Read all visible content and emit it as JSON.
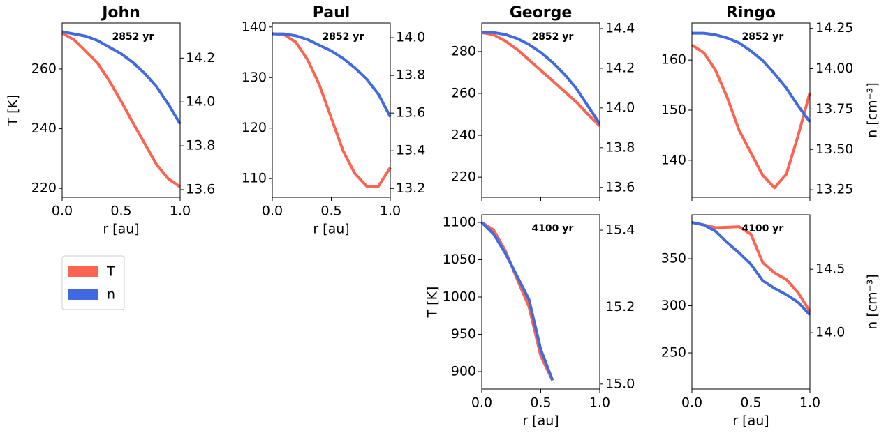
{
  "chart_data": [
    {
      "type": "line",
      "title": "John",
      "annotation": "2852 yr",
      "xlabel": "r [au]",
      "ylabel": "T [K]",
      "x": [
        0,
        0.1,
        0.2,
        0.3,
        0.4,
        0.5,
        0.6,
        0.7,
        0.8,
        0.9,
        1.0
      ],
      "xlim": [
        0,
        1
      ],
      "xticks": [
        {
          "value": 0,
          "label": "0.0"
        },
        0.5,
        {
          "value": 1,
          "label": "1.0"
        }
      ],
      "ylim": [
        217,
        275.4
      ],
      "yticks": [
        220,
        240,
        260
      ],
      "y2lim": [
        13.565,
        14.36
      ],
      "y2ticks": [
        13.6,
        13.8,
        {
          "value": 14.0,
          "label": "14.0"
        },
        14.2
      ],
      "series": [
        {
          "name": "T",
          "color": "#fa6450",
          "values": [
            272,
            269.8,
            266,
            262,
            256,
            249.2,
            242,
            235,
            228,
            223.2,
            220.5
          ]
        },
        {
          "name": "n",
          "color": "#4169e1",
          "axis": "y2",
          "values": [
            14.32,
            14.31,
            14.3,
            14.28,
            14.25,
            14.22,
            14.18,
            14.13,
            14.07,
            13.99,
            13.9
          ]
        }
      ]
    },
    {
      "type": "line",
      "title": "Paul",
      "annotation": "2852 yr",
      "xlabel": "r [au]",
      "x": [
        0,
        0.1,
        0.2,
        0.3,
        0.4,
        0.5,
        0.6,
        0.7,
        0.8,
        0.9,
        1.0
      ],
      "xlim": [
        0,
        1
      ],
      "xticks": [
        {
          "value": 0,
          "label": "0.0"
        },
        0.5,
        {
          "value": 1,
          "label": "1.0"
        }
      ],
      "ylim": [
        106.3,
        140.8
      ],
      "yticks": [
        110,
        120,
        130,
        140
      ],
      "y2lim": [
        13.153,
        14.078
      ],
      "y2ticks": [
        13.2,
        13.4,
        13.6,
        13.8,
        {
          "value": 14.0,
          "label": "14.0"
        }
      ],
      "series": [
        {
          "color": "#fa6450",
          "values": [
            138.7,
            138.5,
            137,
            133.5,
            128.5,
            122,
            115.5,
            111,
            108.5,
            108.5,
            112.2
          ]
        },
        {
          "color": "#4169e1",
          "axis": "y2",
          "values": [
            14.02,
            14.02,
            14.01,
            13.99,
            13.96,
            13.93,
            13.89,
            13.84,
            13.78,
            13.7,
            13.58
          ]
        }
      ]
    },
    {
      "type": "line",
      "title": "George",
      "annotation": "2852 yr",
      "x": [
        0,
        0.1,
        0.2,
        0.3,
        0.4,
        0.5,
        0.6,
        0.7,
        0.8,
        0.9,
        1.0
      ],
      "xlim": [
        0,
        1
      ],
      "xticks": [
        0,
        0.5,
        1
      ],
      "ylim": [
        210.4,
        293.6
      ],
      "yticks": [
        220,
        240,
        260,
        280
      ],
      "y2lim": [
        13.55,
        14.428
      ],
      "y2ticks": [
        13.6,
        13.8,
        {
          "value": 14.0,
          "label": "14.0"
        },
        14.2,
        14.4
      ],
      "series": [
        {
          "color": "#fa6450",
          "values": [
            289,
            288,
            285,
            281,
            276,
            271,
            266,
            261,
            256,
            250,
            244.5
          ]
        },
        {
          "color": "#4169e1",
          "axis": "y2",
          "values": [
            14.38,
            14.38,
            14.37,
            14.35,
            14.32,
            14.28,
            14.23,
            14.17,
            14.1,
            14.01,
            13.92
          ]
        }
      ]
    },
    {
      "type": "line",
      "title": "Ringo",
      "annotation": "2852 yr",
      "y2label": "n [cm⁻³]",
      "x": [
        0,
        0.1,
        0.2,
        0.3,
        0.4,
        0.5,
        0.6,
        0.7,
        0.8,
        0.9,
        1.0
      ],
      "xlim": [
        0,
        1
      ],
      "xticks": [
        0,
        0.5,
        1
      ],
      "ylim": [
        132.6,
        167.4
      ],
      "yticks": [
        140,
        150,
        160
      ],
      "y2lim": [
        13.203,
        14.283
      ],
      "y2ticks": [
        13.25,
        {
          "value": 13.5,
          "label": "13.50"
        },
        13.75,
        {
          "value": 14.0,
          "label": "14.00"
        },
        14.25
      ],
      "series": [
        {
          "color": "#fa6450",
          "values": [
            163,
            161.5,
            158,
            152.5,
            146,
            141.5,
            137,
            134.5,
            137.2,
            144.9,
            153.5
          ]
        },
        {
          "color": "#4169e1",
          "axis": "y2",
          "values": [
            14.22,
            14.22,
            14.21,
            14.19,
            14.16,
            14.11,
            14.05,
            13.97,
            13.88,
            13.77,
            13.67
          ]
        }
      ]
    },
    {
      "type": "line",
      "annotation": "4100 yr",
      "xlabel": "r [au]",
      "ylabel": "T [K]",
      "x": [
        0,
        0.1,
        0.2,
        0.3,
        0.4,
        0.5,
        0.6,
        0.7,
        0.8,
        0.9,
        1.0
      ],
      "xlim": [
        0,
        1
      ],
      "xticks": [
        {
          "value": 0,
          "label": "0.0"
        },
        0.5,
        {
          "value": 1,
          "label": "1.0"
        }
      ],
      "ylim": [
        876.6,
        1110.3
      ],
      "yticks": [
        900,
        950,
        1000,
        1050,
        1100
      ],
      "y2lim": [
        14.987,
        15.44
      ],
      "y2ticks": [
        {
          "value": 15.0,
          "label": "15.0"
        },
        15.2,
        15.4
      ],
      "series": [
        {
          "color": "#fa6450",
          "values": [
            1100,
            1090,
            1062,
            1024,
            987,
            921,
            888,
            null,
            null,
            null,
            null
          ]
        },
        {
          "color": "#4169e1",
          "axis": "y2",
          "values": [
            15.42,
            15.39,
            15.34,
            15.28,
            15.22,
            15.09,
            15.01,
            null,
            null,
            null,
            null
          ]
        }
      ]
    },
    {
      "type": "line",
      "annotation": "4100 yr",
      "xlabel": "r [au]",
      "y2label": "n [cm⁻³]",
      "x": [
        0,
        0.1,
        0.2,
        0.3,
        0.4,
        0.5,
        0.6,
        0.7,
        0.8,
        0.9,
        1.0
      ],
      "xlim": [
        0,
        1
      ],
      "xticks": [
        {
          "value": 0,
          "label": "0.0"
        },
        0.5,
        {
          "value": 1,
          "label": "1.0"
        }
      ],
      "ylim": [
        211.5,
        396.7
      ],
      "yticks": [
        250,
        300,
        350
      ],
      "y2lim": [
        13.555,
        14.93
      ],
      "y2ticks": [
        {
          "value": 14.0,
          "label": "14.0"
        },
        14.5
      ],
      "series": [
        {
          "color": "#fa6450",
          "values": [
            388.5,
            386,
            383,
            383.5,
            384,
            376,
            346,
            335,
            328,
            314,
            294
          ]
        },
        {
          "color": "#4169e1",
          "axis": "y2",
          "values": [
            14.87,
            14.85,
            14.8,
            14.71,
            14.63,
            14.54,
            14.41,
            14.35,
            14.3,
            14.24,
            14.14
          ]
        }
      ]
    }
  ]
}
